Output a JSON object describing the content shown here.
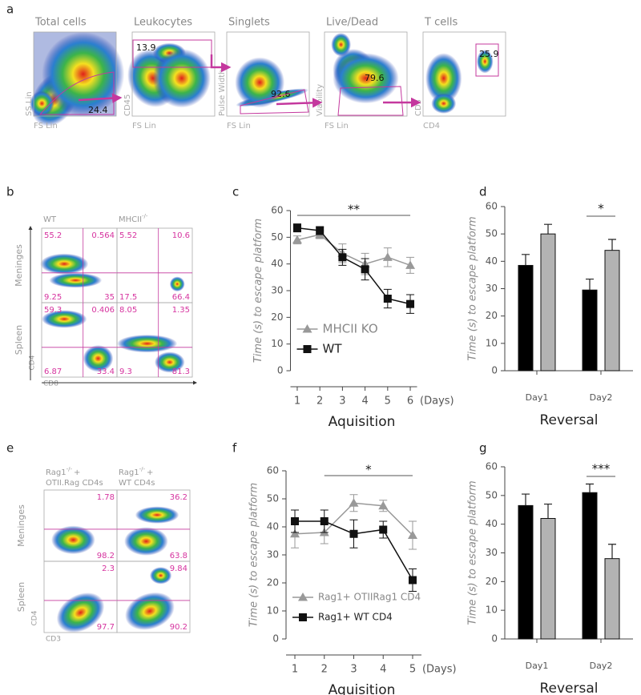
{
  "panel_labels": [
    "a",
    "b",
    "c",
    "d",
    "e",
    "f",
    "g"
  ],
  "gating": [
    {
      "title": "Total cells",
      "y_label": "SS Lin",
      "x_label": "FS Lin",
      "gate": 24.4
    },
    {
      "title": "Leukocytes",
      "y_label": "CD45",
      "x_label": "FS Lin",
      "gate": 13.9
    },
    {
      "title": "Singlets",
      "y_label": "Pulse Width",
      "x_label": "FS Lin",
      "gate": 92.6
    },
    {
      "title": "Live/Dead",
      "y_label": "Viability",
      "x_label": "FS Lin",
      "gate": 79.6
    },
    {
      "title": "T cells",
      "y_label": "CD3",
      "x_label": "CD4",
      "gate": 25.9
    }
  ],
  "panel_b": {
    "columns": [
      {
        "text": "WT"
      },
      {
        "text": "MHCII",
        "sup": "-/-"
      }
    ],
    "rows": [
      "Meninges",
      "Spleen"
    ],
    "y_label": "CD4",
    "x_label": "CD8",
    "quadrants": [
      [
        [
          55.2,
          0.564,
          9.25,
          35
        ],
        [
          5.52,
          10.6,
          17.5,
          66.4
        ]
      ],
      [
        [
          59.3,
          0.406,
          6.87,
          33.4
        ],
        [
          8.05,
          1.35,
          9.3,
          81.3
        ]
      ]
    ]
  },
  "panel_e": {
    "columns": [
      {
        "text": "Rag1",
        "sup": "-/-",
        "after": "+",
        "line2": "OTII.Rag CD4s"
      },
      {
        "text": "Rag1",
        "sup": "-/-",
        "after": "+",
        "line2": "WT  CD4s"
      }
    ],
    "rows": [
      "Meninges",
      "Spleen"
    ],
    "y_label": "CD4",
    "x_label": "CD3",
    "quadrants": [
      [
        [
          1.78,
          98.2
        ],
        [
          36.2,
          63.8
        ]
      ],
      [
        [
          2.3,
          97.7
        ],
        [
          9.84,
          90.2
        ]
      ]
    ]
  },
  "chart_data": [
    {
      "type": "line",
      "x": [
        1,
        2,
        3,
        4,
        5,
        6
      ],
      "xlim": [
        0.7,
        6.3
      ],
      "xticks": [
        1,
        2,
        3,
        4,
        5,
        6
      ],
      "x_unit": "(Days)",
      "xlabel": "Aquisition",
      "ylabel": "Time (s) to escape platform",
      "ylim": [
        0,
        60
      ],
      "yticks": [
        0,
        10,
        20,
        30,
        40,
        50,
        60
      ],
      "annotation": "**",
      "annotation_span": [
        1,
        6
      ],
      "legend": "lower left",
      "series": [
        {
          "name": "MHCII KO",
          "color": "#999999",
          "marker": "triangle",
          "values": [
            49,
            51,
            44,
            40,
            42.5,
            39.5
          ],
          "errors": [
            1.5,
            1.5,
            3.5,
            4,
            3.5,
            3
          ]
        },
        {
          "name": "WT",
          "color": "#111111",
          "marker": "square",
          "values": [
            53.5,
            52.5,
            42.5,
            38,
            27,
            25
          ],
          "errors": [
            1.5,
            1.5,
            3,
            4,
            3.5,
            3.5
          ]
        }
      ]
    },
    {
      "type": "bar",
      "categories": [
        "Day1",
        "Day2"
      ],
      "xlabel": "Reversal",
      "ylabel": "Time (s) to escape platform",
      "ylim": [
        0,
        60
      ],
      "yticks": [
        0,
        10,
        20,
        30,
        40,
        50,
        60
      ],
      "annotation": "*",
      "series": [
        {
          "color": "#000000",
          "values": [
            38.5,
            29.5
          ],
          "errors": [
            4,
            4
          ]
        },
        {
          "color": "#b3b3b3",
          "values": [
            50,
            44
          ],
          "errors": [
            3.5,
            4
          ]
        }
      ]
    },
    {
      "type": "line",
      "x": [
        1,
        2,
        3,
        4,
        5
      ],
      "xlim": [
        0.7,
        5.3
      ],
      "xticks": [
        1,
        2,
        3,
        4,
        5
      ],
      "x_unit": "(Days)",
      "xlabel": "Aquisition",
      "ylabel": "Time (s) to escape platform",
      "ylim": [
        0,
        60
      ],
      "yticks": [
        0,
        10,
        20,
        30,
        40,
        50,
        60
      ],
      "annotation": "*",
      "annotation_span": [
        2,
        5
      ],
      "legend": "lower left",
      "series": [
        {
          "name": "Rag1+ OTIIRag1 CD4",
          "color": "#999999",
          "marker": "triangle",
          "values": [
            37.5,
            38,
            48.5,
            47.5,
            37
          ],
          "errors": [
            5,
            4,
            3,
            2,
            5
          ]
        },
        {
          "name": "Rag1+ WT CD4",
          "color": "#111111",
          "marker": "square",
          "values": [
            42,
            42,
            37.5,
            39,
            21
          ],
          "errors": [
            4,
            4,
            5,
            3,
            4
          ]
        }
      ]
    },
    {
      "type": "bar",
      "categories": [
        "Day1",
        "Day2"
      ],
      "xlabel": "Reversal",
      "ylabel": "Time (s) to escape platform",
      "ylim": [
        0,
        60
      ],
      "yticks": [
        0,
        10,
        20,
        30,
        40,
        50,
        60
      ],
      "annotation": "***",
      "series": [
        {
          "color": "#000000",
          "values": [
            46.5,
            51
          ],
          "errors": [
            4,
            3
          ]
        },
        {
          "color": "#b3b3b3",
          "values": [
            42,
            28
          ],
          "errors": [
            5,
            5
          ]
        }
      ]
    }
  ]
}
